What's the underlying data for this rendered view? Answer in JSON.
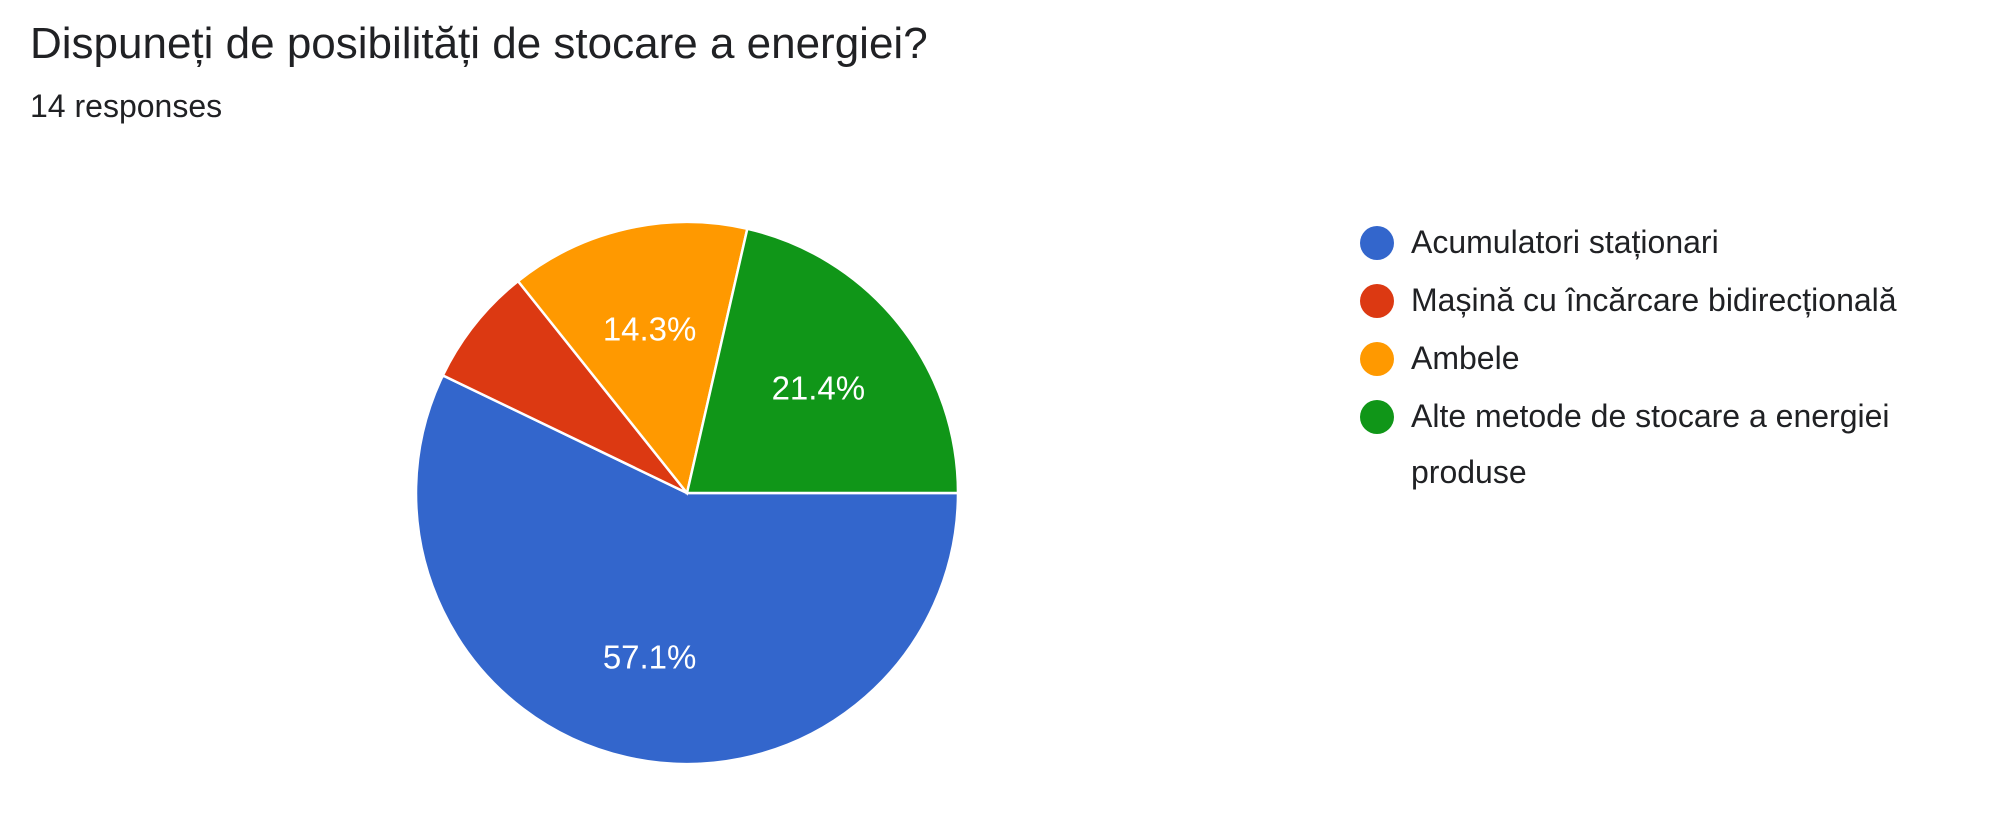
{
  "header": {
    "title": "Dispuneți de posibilități de stocare a energiei?",
    "subtitle": "14 responses"
  },
  "chart_data": {
    "type": "pie",
    "title": "Dispuneți de posibilități de stocare a energiei?",
    "total_responses": 14,
    "legend_position": "right",
    "slices": [
      {
        "label": "Acumulatori staționari",
        "count": 8,
        "percent": 57.1,
        "percent_label": "57.1%",
        "color": "#3366cc"
      },
      {
        "label": "Mașină cu încărcare bidirecțională",
        "count": 1,
        "percent": 7.1,
        "percent_label": "",
        "color": "#dc3912"
      },
      {
        "label": "Ambele",
        "count": 2,
        "percent": 14.3,
        "percent_label": "14.3%",
        "color": "#ff9900"
      },
      {
        "label": "Alte metode de stocare a energiei produse",
        "count": 3,
        "percent": 21.4,
        "percent_label": "21.4%",
        "color": "#109618"
      }
    ]
  }
}
